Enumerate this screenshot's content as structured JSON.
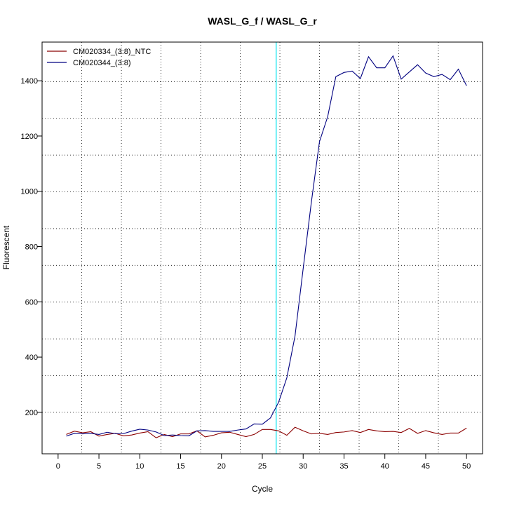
{
  "chart_data": {
    "type": "line",
    "title": "WASL_G_f / WASL_G_r",
    "xlabel": "Cycle",
    "ylabel": "Fluorescent",
    "xlim": [
      -1.96,
      51.96
    ],
    "ylim": [
      50,
      1540
    ],
    "xticks": [
      0,
      5,
      10,
      15,
      20,
      25,
      30,
      35,
      40,
      45,
      50
    ],
    "yticks": [
      200,
      400,
      600,
      800,
      1000,
      1200,
      1400
    ],
    "grid": "dotted",
    "grid_x": [
      2.9,
      7.75,
      12.6,
      17.45,
      22.3,
      27.15,
      32,
      36.85,
      41.7,
      46.55
    ],
    "grid_y": [
      200,
      333,
      466,
      599,
      732,
      865,
      998,
      1131,
      1264,
      1397
    ],
    "legend_position": "top-left",
    "threshold_x": 26.7,
    "threshold_color": "#00e5ee",
    "x": [
      1,
      2,
      3,
      4,
      5,
      6,
      7,
      8,
      9,
      10,
      11,
      12,
      13,
      14,
      15,
      16,
      17,
      18,
      19,
      20,
      21,
      22,
      23,
      24,
      25,
      26,
      27,
      28,
      29,
      30,
      31,
      32,
      33,
      34,
      35,
      36,
      37,
      38,
      39,
      40,
      41,
      42,
      43,
      44,
      45,
      46,
      47,
      48,
      49,
      50
    ],
    "series": [
      {
        "name": "CM020334_(3:8)_NTC",
        "color": "#8b0000",
        "values": [
          120,
          132,
          126,
          130,
          114,
          120,
          124,
          115,
          118,
          125,
          130,
          108,
          120,
          112,
          122,
          122,
          133,
          111,
          117,
          126,
          128,
          120,
          112,
          120,
          138,
          138,
          133,
          117,
          146,
          133,
          122,
          124,
          120,
          127,
          129,
          134,
          127,
          138,
          133,
          130,
          131,
          127,
          142,
          124,
          134,
          126,
          120,
          125,
          125,
          143
        ]
      },
      {
        "name": "CM020344_(3:8)",
        "color": "#000080",
        "values": [
          114,
          124,
          122,
          124,
          120,
          128,
          123,
          123,
          132,
          139,
          136,
          129,
          116,
          118,
          116,
          115,
          133,
          134,
          131,
          131,
          131,
          136,
          140,
          158,
          157,
          180,
          237,
          325,
          476,
          720,
          960,
          1180,
          1270,
          1415,
          1430,
          1435,
          1408,
          1487,
          1447,
          1447,
          1490,
          1406,
          1432,
          1458,
          1428,
          1415,
          1423,
          1404,
          1442,
          1382
        ]
      }
    ]
  }
}
